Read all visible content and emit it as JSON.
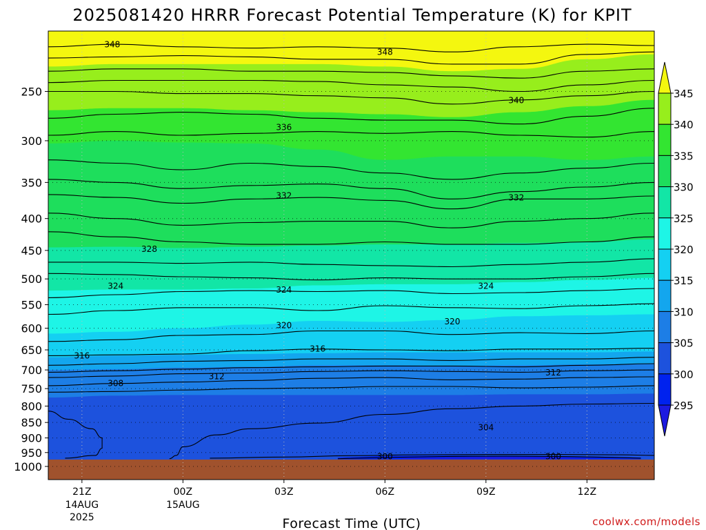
{
  "chart_data": {
    "type": "heatmap",
    "title": "2025081420 HRRR Forecast Potential Temperature (K) for KPIT",
    "xlabel": "Forecast Time (UTC)",
    "ylabel": "",
    "credit": "coolwx.com/models",
    "x_ticks": [
      {
        "hour": 1,
        "label": "21Z",
        "sub": [
          "14AUG",
          "2025"
        ]
      },
      {
        "hour": 4,
        "label": "00Z",
        "sub": [
          "15AUG"
        ]
      },
      {
        "hour": 7,
        "label": "03Z",
        "sub": []
      },
      {
        "hour": 10,
        "label": "06Z",
        "sub": []
      },
      {
        "hour": 13,
        "label": "09Z",
        "sub": []
      },
      {
        "hour": 16,
        "label": "12Z",
        "sub": []
      }
    ],
    "x_range_hours": [
      0,
      18
    ],
    "y_axis": "pressure (hPa), log scale, increasing downward",
    "y_range": [
      200,
      1050
    ],
    "y_ticks": [
      250,
      300,
      350,
      400,
      450,
      500,
      550,
      600,
      650,
      700,
      750,
      800,
      850,
      900,
      950,
      1000
    ],
    "colorbar": {
      "levels": [
        295,
        300,
        305,
        310,
        315,
        320,
        325,
        330,
        335,
        340,
        345
      ],
      "colors": [
        "#1c1ae0",
        "#0022ee",
        "#1d52dd",
        "#1d7ee6",
        "#13a6ee",
        "#14d0f2",
        "#1ef5e6",
        "#12e6a6",
        "#1ede5c",
        "#33e531",
        "#97ee1c",
        "#f4f70f"
      ],
      "extend": "both"
    },
    "ground_color": "#a0522d",
    "contour_labels": [
      {
        "value": 348,
        "x_hour": 1.9,
        "p": 210
      },
      {
        "value": 348,
        "x_hour": 10.0,
        "p": 216
      },
      {
        "value": 340,
        "x_hour": 13.9,
        "p": 258
      },
      {
        "value": 336,
        "x_hour": 7.0,
        "p": 285
      },
      {
        "value": 332,
        "x_hour": 7.0,
        "p": 367
      },
      {
        "value": 332,
        "x_hour": 13.9,
        "p": 370
      },
      {
        "value": 328,
        "x_hour": 3.0,
        "p": 447
      },
      {
        "value": 324,
        "x_hour": 2.0,
        "p": 513
      },
      {
        "value": 324,
        "x_hour": 7.0,
        "p": 520
      },
      {
        "value": 324,
        "x_hour": 13.0,
        "p": 513
      },
      {
        "value": 320,
        "x_hour": 7.0,
        "p": 593
      },
      {
        "value": 320,
        "x_hour": 12.0,
        "p": 585
      },
      {
        "value": 316,
        "x_hour": 1.0,
        "p": 663
      },
      {
        "value": 316,
        "x_hour": 8.0,
        "p": 647
      },
      {
        "value": 312,
        "x_hour": 5.0,
        "p": 716
      },
      {
        "value": 312,
        "x_hour": 15.0,
        "p": 706
      },
      {
        "value": 308,
        "x_hour": 2.0,
        "p": 735
      },
      {
        "value": 304,
        "x_hour": 13.0,
        "p": 865
      },
      {
        "value": 300,
        "x_hour": 10.0,
        "p": 963
      },
      {
        "value": 300,
        "x_hour": 15.0,
        "p": 963
      }
    ]
  }
}
